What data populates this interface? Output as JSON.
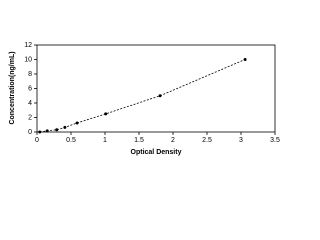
{
  "chart_data": {
    "type": "scatter",
    "x": [
      0.04,
      0.15,
      0.29,
      0.41,
      0.59,
      1.01,
      1.81,
      3.06
    ],
    "values": [
      0,
      0.16,
      0.31,
      0.63,
      1.25,
      2.5,
      5,
      10
    ],
    "color": "#000000",
    "connect_dashed": true,
    "xlabel": "Optical Density",
    "ylabel": "Concentration(ng/mL)",
    "xlim": [
      0,
      3.5
    ],
    "xticks": [
      0,
      0.5,
      1,
      1.5,
      2,
      2.5,
      3,
      3.5
    ],
    "ylim": [
      0,
      12
    ],
    "yticks": [
      0,
      2,
      4,
      6,
      8,
      10,
      12
    ]
  }
}
